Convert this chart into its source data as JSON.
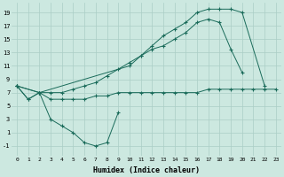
{
  "background_color": "#cce8e0",
  "grid_color": "#aacec6",
  "line_color": "#1a6b5a",
  "xlabel": "Humidex (Indice chaleur)",
  "xlim": [
    -0.5,
    23.5
  ],
  "ylim": [
    -2.5,
    20.5
  ],
  "xticks": [
    0,
    1,
    2,
    3,
    4,
    5,
    6,
    7,
    8,
    9,
    10,
    11,
    12,
    13,
    14,
    15,
    16,
    17,
    18,
    19,
    20,
    21,
    22,
    23
  ],
  "yticks": [
    -1,
    1,
    3,
    5,
    7,
    9,
    11,
    13,
    15,
    17,
    19
  ],
  "series_dew": {
    "x": [
      0,
      1,
      2,
      3,
      4,
      5,
      6,
      7,
      8,
      9,
      10,
      11,
      12,
      13,
      14,
      15,
      16,
      17,
      18,
      19,
      20,
      21,
      22,
      23
    ],
    "y": [
      8,
      6,
      7,
      6,
      6,
      6,
      6,
      6.5,
      6.5,
      7,
      7,
      7,
      7,
      7,
      7,
      7,
      7,
      7.5,
      7.5,
      7.5,
      7.5,
      7.5,
      7.5,
      7.5
    ]
  },
  "series_temp": {
    "x": [
      0,
      2,
      3,
      4,
      5,
      6,
      7,
      8,
      9,
      10,
      11,
      12,
      13,
      14,
      15,
      16,
      17,
      18,
      19,
      20,
      21,
      22
    ],
    "y": [
      8,
      7,
      7,
      7,
      7.5,
      8,
      8.5,
      9.5,
      10.5,
      11.5,
      12.5,
      13.5,
      14,
      15,
      16,
      17.5,
      18,
      17.5,
      13.5,
      10,
      null,
      null
    ]
  },
  "series_min": {
    "x": [
      0,
      1,
      2,
      3,
      4,
      5,
      6,
      7,
      8,
      9
    ],
    "y": [
      8,
      6,
      7,
      3,
      2,
      1,
      -0.5,
      -1,
      -0.5,
      4
    ]
  },
  "series_max": {
    "x": [
      0,
      2,
      10,
      11,
      12,
      13,
      14,
      15,
      16,
      17,
      18,
      19,
      20,
      22
    ],
    "y": [
      8,
      7,
      11,
      12.5,
      14,
      15.5,
      16.5,
      17.5,
      19,
      19.5,
      19.5,
      19.5,
      19,
      8
    ]
  }
}
